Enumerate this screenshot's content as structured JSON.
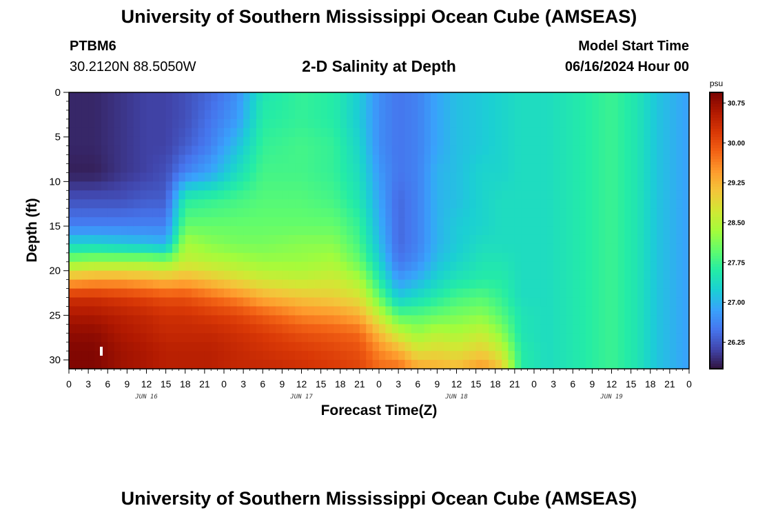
{
  "header": {
    "title": "University of Southern Mississippi Ocean Cube (AMSEAS)",
    "station": "PTBM6",
    "coords": "30.2120N  88.5050W",
    "subtitle": "2-D Salinity at Depth",
    "start_label": "Model Start Time",
    "start_value": "06/16/2024 Hour 00"
  },
  "footer": {
    "title": "University of Southern Mississippi Ocean Cube (AMSEAS)"
  },
  "chart_data": {
    "type": "heatmap",
    "title": "2-D Salinity at Depth",
    "xlabel": "Forecast Time(Z)",
    "ylabel": "Depth (ft)",
    "xlim": [
      0,
      96
    ],
    "ylim": [
      31,
      0
    ],
    "x_ticks": [
      0,
      3,
      6,
      9,
      12,
      15,
      18,
      21,
      24,
      27,
      30,
      33,
      36,
      39,
      42,
      45,
      48,
      51,
      54,
      57,
      60,
      63,
      66,
      69,
      72,
      75,
      78,
      81,
      84,
      87,
      90,
      93,
      96
    ],
    "x_tick_labels": [
      "0",
      "3",
      "6",
      "9",
      "12",
      "15",
      "18",
      "21",
      "0",
      "3",
      "6",
      "9",
      "12",
      "15",
      "18",
      "21",
      "0",
      "3",
      "6",
      "9",
      "12",
      "15",
      "18",
      "21",
      "0",
      "3",
      "6",
      "9",
      "12",
      "15",
      "18",
      "21",
      "0"
    ],
    "y_ticks": [
      0,
      5,
      10,
      15,
      20,
      25,
      30
    ],
    "y_tick_labels": [
      "0",
      "5",
      "10",
      "15",
      "20",
      "25",
      "30"
    ],
    "day_labels": [
      {
        "x": 12,
        "label": "JUN 16"
      },
      {
        "x": 36,
        "label": "JUN 17"
      },
      {
        "x": 60,
        "label": "JUN 18"
      },
      {
        "x": 84,
        "label": "JUN 19"
      }
    ],
    "colorbar": {
      "unit": "psu",
      "min": 25.75,
      "max": 30.95,
      "ticks": [
        26.25,
        27.0,
        27.75,
        28.5,
        29.25,
        30.0,
        30.75
      ],
      "tick_labels": [
        "26.25",
        "27.00",
        "27.75",
        "28.50",
        "29.25",
        "30.00",
        "30.75"
      ],
      "colors": [
        "#30123b",
        "#4145ab",
        "#4675ed",
        "#39a2fc",
        "#1bcfd4",
        "#24eca6",
        "#61fc6c",
        "#a4fc3b",
        "#d1e834",
        "#f3c63a",
        "#fe9b2d",
        "#f36315",
        "#d93806",
        "#b11901",
        "#7a0402"
      ]
    },
    "depth_levels_ft": [
      0,
      3,
      6,
      9,
      12,
      15,
      17,
      19,
      21,
      23,
      25,
      27,
      29,
      31
    ],
    "columns": [
      {
        "hour": 0,
        "salinity": [
          25.9,
          25.9,
          25.9,
          25.85,
          26.2,
          26.6,
          27.3,
          28.2,
          29.3,
          30.3,
          30.6,
          30.8,
          30.9,
          30.9
        ]
      },
      {
        "hour": 4,
        "salinity": [
          25.9,
          25.9,
          25.9,
          25.85,
          26.2,
          26.6,
          27.3,
          28.3,
          29.4,
          30.3,
          30.6,
          30.8,
          30.9,
          30.9
        ]
      },
      {
        "hour": 8,
        "salinity": [
          26.0,
          26.0,
          26.0,
          26.0,
          26.2,
          26.6,
          27.2,
          28.3,
          29.4,
          30.2,
          30.5,
          30.6,
          30.7,
          30.7
        ]
      },
      {
        "hour": 12,
        "salinity": [
          26.1,
          26.1,
          26.1,
          26.1,
          26.3,
          26.6,
          27.1,
          28.3,
          29.3,
          30.1,
          30.4,
          30.5,
          30.6,
          30.6
        ]
      },
      {
        "hour": 15,
        "salinity": [
          26.1,
          26.1,
          26.1,
          26.2,
          26.3,
          26.6,
          27.0,
          28.2,
          29.2,
          30.0,
          30.3,
          30.4,
          30.5,
          30.5
        ]
      },
      {
        "hour": 18,
        "salinity": [
          26.2,
          26.2,
          26.3,
          26.6,
          27.6,
          28.0,
          28.4,
          28.6,
          29.3,
          30.0,
          30.3,
          30.4,
          30.5,
          30.5
        ]
      },
      {
        "hour": 22,
        "salinity": [
          26.4,
          26.5,
          26.6,
          26.9,
          27.7,
          28.0,
          28.2,
          28.5,
          29.1,
          29.8,
          30.2,
          30.4,
          30.5,
          30.5
        ]
      },
      {
        "hour": 26,
        "salinity": [
          26.7,
          26.8,
          27.1,
          27.4,
          27.8,
          28.0,
          28.1,
          28.4,
          28.9,
          29.6,
          30.1,
          30.3,
          30.4,
          30.4
        ]
      },
      {
        "hour": 30,
        "salinity": [
          27.5,
          27.6,
          27.7,
          27.8,
          27.9,
          28.0,
          28.1,
          28.3,
          28.7,
          29.3,
          29.9,
          30.2,
          30.3,
          30.4
        ]
      },
      {
        "hour": 36,
        "salinity": [
          27.7,
          27.7,
          27.8,
          27.8,
          27.9,
          28.0,
          28.2,
          28.3,
          28.6,
          29.1,
          29.6,
          30.0,
          30.2,
          30.3
        ]
      },
      {
        "hour": 41,
        "salinity": [
          27.6,
          27.6,
          27.7,
          27.7,
          27.8,
          28.0,
          28.2,
          28.4,
          28.7,
          29.0,
          29.5,
          29.9,
          30.1,
          30.2
        ]
      },
      {
        "hour": 45,
        "salinity": [
          27.2,
          27.2,
          27.3,
          27.4,
          27.5,
          27.7,
          27.8,
          28.0,
          28.4,
          28.8,
          29.3,
          29.8,
          30.0,
          30.1
        ]
      },
      {
        "hour": 48,
        "salinity": [
          26.7,
          26.7,
          26.7,
          26.8,
          26.9,
          27.0,
          27.1,
          27.3,
          27.6,
          28.0,
          28.6,
          29.2,
          29.6,
          29.8
        ]
      },
      {
        "hour": 51,
        "salinity": [
          26.5,
          26.5,
          26.5,
          26.5,
          26.4,
          26.4,
          26.4,
          26.5,
          26.8,
          27.2,
          27.9,
          28.6,
          29.3,
          29.8
        ]
      },
      {
        "hour": 54,
        "salinity": [
          26.6,
          26.6,
          26.6,
          26.6,
          26.6,
          26.6,
          26.6,
          26.7,
          27.0,
          27.4,
          27.9,
          28.3,
          28.8,
          29.4
        ]
      },
      {
        "hour": 57,
        "salinity": [
          26.9,
          26.9,
          26.9,
          27.0,
          27.0,
          27.0,
          27.0,
          27.1,
          27.3,
          27.6,
          28.0,
          28.5,
          28.9,
          29.3
        ]
      },
      {
        "hour": 60,
        "salinity": [
          27.1,
          27.1,
          27.1,
          27.1,
          27.1,
          27.2,
          27.2,
          27.3,
          27.5,
          27.8,
          28.1,
          28.4,
          28.8,
          29.2
        ]
      },
      {
        "hour": 64,
        "salinity": [
          27.2,
          27.2,
          27.2,
          27.3,
          27.3,
          27.3,
          27.4,
          27.5,
          27.6,
          27.9,
          28.2,
          28.6,
          29.0,
          29.5
        ]
      },
      {
        "hour": 67,
        "salinity": [
          27.3,
          27.3,
          27.3,
          27.3,
          27.4,
          27.4,
          27.4,
          27.5,
          27.6,
          27.7,
          27.9,
          28.2,
          28.6,
          29.1
        ]
      },
      {
        "hour": 70,
        "salinity": [
          27.4,
          27.4,
          27.4,
          27.4,
          27.4,
          27.4,
          27.4,
          27.4,
          27.4,
          27.4,
          27.5,
          27.5,
          27.6,
          27.6
        ]
      },
      {
        "hour": 74,
        "salinity": [
          27.4,
          27.4,
          27.4,
          27.4,
          27.4,
          27.4,
          27.4,
          27.4,
          27.4,
          27.4,
          27.4,
          27.4,
          27.4,
          27.4
        ]
      },
      {
        "hour": 80,
        "salinity": [
          27.6,
          27.6,
          27.6,
          27.6,
          27.6,
          27.6,
          27.6,
          27.6,
          27.6,
          27.6,
          27.6,
          27.6,
          27.6,
          27.6
        ]
      },
      {
        "hour": 84,
        "salinity": [
          27.75,
          27.75,
          27.75,
          27.75,
          27.75,
          27.75,
          27.75,
          27.75,
          27.75,
          27.75,
          27.75,
          27.75,
          27.75,
          27.75
        ]
      },
      {
        "hour": 88,
        "salinity": [
          27.5,
          27.5,
          27.5,
          27.5,
          27.5,
          27.5,
          27.5,
          27.5,
          27.5,
          27.5,
          27.5,
          27.5,
          27.5,
          27.5
        ]
      },
      {
        "hour": 91,
        "salinity": [
          27.15,
          27.15,
          27.15,
          27.15,
          27.15,
          27.15,
          27.15,
          27.15,
          27.15,
          27.15,
          27.15,
          27.15,
          27.15,
          27.15
        ]
      },
      {
        "hour": 96,
        "salinity": [
          26.85,
          26.85,
          26.85,
          26.85,
          26.85,
          26.85,
          26.85,
          26.85,
          26.85,
          26.85,
          26.85,
          26.85,
          26.85,
          26.85
        ]
      }
    ]
  }
}
